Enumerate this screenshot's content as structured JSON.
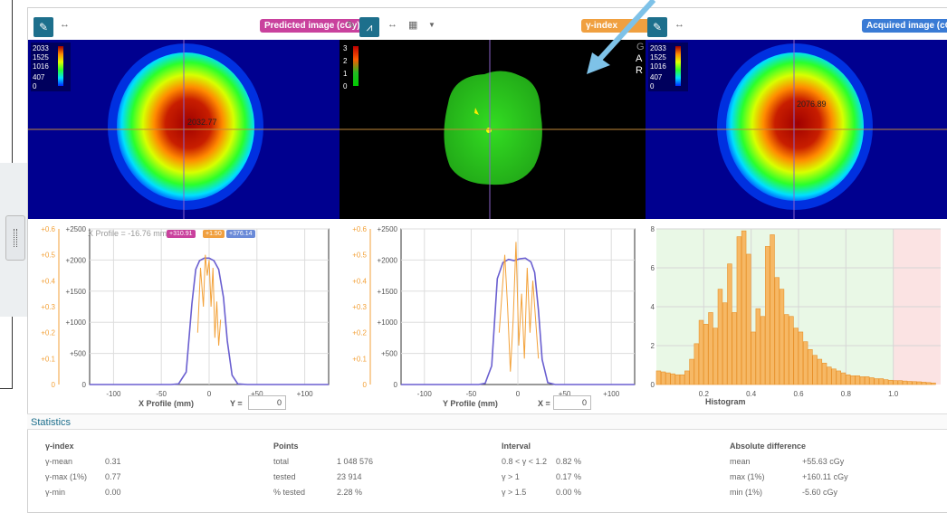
{
  "toolbar": {
    "predicted_label": "Predicted image (cGy)",
    "gamma_label": "γ-index",
    "acquired_label": "Acquired image (cGy)"
  },
  "colors": {
    "predicted_pill": "#c9419d",
    "gamma_pill": "#f0a040",
    "acquired_pill": "#3a7bd5",
    "toolbar_btn": "#1d6f8c",
    "profile_blue": "#6a5fd0",
    "gamma_orange": "#f3a23a"
  },
  "predicted": {
    "cbar_ticks": [
      "2033",
      "1525",
      "1016",
      "407",
      "0"
    ],
    "value": "2032.77"
  },
  "gamma": {
    "cbar_ticks": [
      "3",
      "2",
      "1",
      "0"
    ],
    "labels": [
      "G",
      "A",
      "R"
    ]
  },
  "acquired": {
    "cbar_ticks": [
      "2033",
      "1525",
      "1016",
      "407",
      "0"
    ],
    "value": "2076.89"
  },
  "xprofile": {
    "label": "X Profile (mm)",
    "title": "X Profile = -16.76 mm",
    "badge1": "+310.91",
    "badge2": "+1.50",
    "badge3": "+376.14",
    "coord_label": "Y =",
    "coord_value": "0"
  },
  "yprofile": {
    "label": "Y Profile (mm)",
    "coord_label": "X =",
    "coord_value": "0"
  },
  "histogram": {
    "label": "Histogram"
  },
  "chart_data": [
    {
      "type": "line",
      "name": "X Profile",
      "xlim": [
        -125,
        125
      ],
      "ylim_left": [
        0,
        0.6
      ],
      "ylim_right": [
        0,
        2500
      ],
      "xticks": [
        "-100",
        "-50",
        "0",
        "+50",
        "+100"
      ],
      "yleft_ticks": [
        "0",
        "+0.1",
        "+0.2",
        "+0.3",
        "+0.4",
        "+0.5",
        "+0.6"
      ],
      "yright_ticks": [
        "0",
        "+500",
        "+1000",
        "+1500",
        "+2000",
        "+2500"
      ],
      "dose_x": [
        -125,
        -40,
        -32,
        -24,
        -18,
        -14,
        -10,
        -5,
        0,
        5,
        10,
        15,
        19,
        24,
        30,
        40,
        125
      ],
      "dose_y": [
        0,
        0,
        10,
        200,
        1300,
        1850,
        1990,
        2030,
        2030,
        1990,
        1850,
        1400,
        700,
        150,
        10,
        0,
        0
      ],
      "gamma_x": [
        -12,
        -9,
        -6,
        -4,
        -2,
        0,
        2,
        4,
        6,
        8,
        10,
        12
      ],
      "gamma_y": [
        0.2,
        0.45,
        0.3,
        0.5,
        0.42,
        0.48,
        0.3,
        0.45,
        0.18,
        0.32,
        0.15,
        0.25
      ]
    },
    {
      "type": "line",
      "name": "Y Profile",
      "xlim": [
        -125,
        125
      ],
      "ylim_left": [
        0,
        0.6
      ],
      "ylim_right": [
        0,
        2500
      ],
      "xticks": [
        "-100",
        "-50",
        "0",
        "+50",
        "+100"
      ],
      "yleft_ticks": [
        "0",
        "+0.1",
        "+0.2",
        "+0.3",
        "+0.4",
        "+0.5",
        "+0.6"
      ],
      "yright_ticks": [
        "0",
        "+500",
        "+1000",
        "+1500",
        "+2000",
        "+2500"
      ],
      "dose_x": [
        -125,
        -42,
        -35,
        -28,
        -22,
        -16,
        -10,
        -4,
        2,
        8,
        14,
        18,
        22,
        26,
        32,
        40,
        125
      ],
      "dose_y": [
        0,
        0,
        20,
        300,
        1700,
        1960,
        2010,
        1990,
        2020,
        2030,
        1970,
        1800,
        1200,
        400,
        30,
        0,
        0
      ],
      "gamma_x": [
        -20,
        -17,
        -14,
        -11,
        -8,
        -5,
        -2,
        1,
        4,
        7,
        10,
        13,
        16,
        19,
        22
      ],
      "gamma_y": [
        0.2,
        0.35,
        0.5,
        0.3,
        0.05,
        0.25,
        0.55,
        0.15,
        0.35,
        0.1,
        0.45,
        0.2,
        0.4,
        0.25,
        0.1
      ]
    },
    {
      "type": "bar",
      "name": "Histogram",
      "xlim": [
        0,
        1.2
      ],
      "ylim": [
        0,
        8
      ],
      "xticks": [
        "0.2",
        "0.4",
        "0.6",
        "0.8",
        "1.0"
      ],
      "yticks": [
        "0",
        "2",
        "4",
        "6",
        "8"
      ],
      "pass_threshold": 1.0,
      "bin_width": 0.02,
      "values": [
        0.7,
        0.65,
        0.6,
        0.55,
        0.5,
        0.5,
        0.7,
        1.3,
        2.1,
        3.3,
        3.1,
        3.7,
        2.9,
        4.9,
        4.2,
        6.2,
        3.7,
        7.6,
        7.9,
        6.7,
        2.7,
        3.9,
        3.5,
        7.1,
        7.7,
        5.5,
        4.9,
        3.6,
        3.5,
        2.9,
        2.7,
        2.2,
        1.8,
        1.5,
        1.3,
        1.1,
        0.9,
        0.8,
        0.7,
        0.6,
        0.5,
        0.45,
        0.45,
        0.4,
        0.4,
        0.35,
        0.3,
        0.3,
        0.25,
        0.22,
        0.2,
        0.2,
        0.18,
        0.16,
        0.15,
        0.14,
        0.12,
        0.1,
        0.08
      ]
    }
  ],
  "statistics": {
    "title": "Statistics",
    "gamma": {
      "heading": "γ-index",
      "rows": [
        {
          "k": "γ-mean",
          "v": "0.31"
        },
        {
          "k": "γ-max (1%)",
          "v": "0.77"
        },
        {
          "k": "γ-min",
          "v": "0.00"
        }
      ]
    },
    "points": {
      "heading": "Points",
      "rows": [
        {
          "k": "total",
          "v": "1 048 576"
        },
        {
          "k": "tested",
          "v": "23 914"
        },
        {
          "k": "% tested",
          "v": "2.28 %"
        }
      ]
    },
    "interval": {
      "heading": "Interval",
      "rows": [
        {
          "k": "0.8 < γ < 1.2",
          "v": "0.82 %"
        },
        {
          "k": "γ > 1",
          "v": "0.17 %"
        },
        {
          "k": "γ > 1.5",
          "v": "0.00 %"
        }
      ]
    },
    "absdiff": {
      "heading": "Absolute difference",
      "rows": [
        {
          "k": "mean",
          "v": "+55.63 cGy"
        },
        {
          "k": "max (1%)",
          "v": "+160.11 cGy"
        },
        {
          "k": "min (1%)",
          "v": "-5.60 cGy"
        }
      ]
    }
  }
}
